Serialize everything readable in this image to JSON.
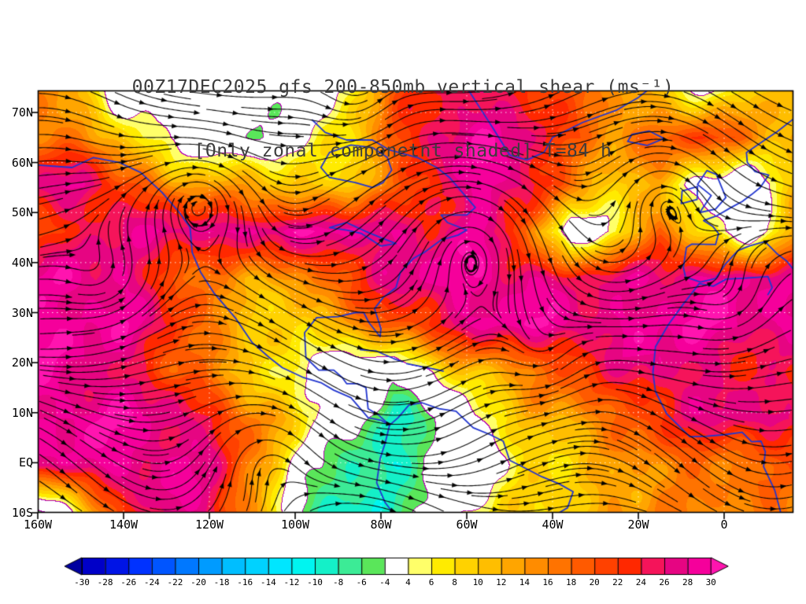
{
  "chart_data": {
    "type": "heatmap",
    "overlays": [
      "streamlines",
      "coastlines",
      "zero-contours"
    ],
    "title": "00Z17DEC2025 gfs 200-850mb vertical shear (ms⁻¹)",
    "subtitle": "[Only zonal componetnt shaded] T=84 h",
    "model": "gfs",
    "valid_time": "00Z17DEC2025",
    "level_range": "200-850mb",
    "forecast_hour": "T=84 h",
    "units": "ms⁻¹",
    "x_ticks": {
      "labels": [
        "160W",
        "140W",
        "120W",
        "100W",
        "80W",
        "60W",
        "40W",
        "20W",
        "0"
      ],
      "values": [
        -160,
        -140,
        -120,
        -100,
        -80,
        -60,
        -40,
        -20,
        0
      ]
    },
    "y_ticks": {
      "labels": [
        "70N",
        "60N",
        "50N",
        "40N",
        "30N",
        "20N",
        "10N",
        "EQ",
        "10S"
      ],
      "values": [
        70,
        60,
        50,
        40,
        30,
        20,
        10,
        0,
        -10
      ]
    },
    "geo": {
      "lon_min": -160,
      "lon_max": 16.1,
      "lat_min": -10,
      "lat_max": 74.4
    },
    "grid": {
      "ncols": 18,
      "nrows": 10,
      "description": "zonal shear (ms-1), rows from 74.4N (top) to 10S (bottom), cols from 160W to 16E",
      "values": [
        [
          16,
          10,
          0,
          -2,
          -4,
          0,
          -2,
          6,
          18,
          24,
          26,
          24,
          18,
          14,
          10,
          4,
          8,
          12
        ],
        [
          18,
          16,
          8,
          2,
          0,
          -4,
          2,
          8,
          20,
          28,
          29,
          26,
          20,
          16,
          18,
          22,
          16,
          12
        ],
        [
          26,
          28,
          22,
          14,
          12,
          12,
          10,
          10,
          16,
          24,
          29,
          28,
          16,
          8,
          12,
          2,
          -2,
          10
        ],
        [
          20,
          24,
          26,
          28,
          29,
          29,
          28,
          29,
          28,
          26,
          28,
          18,
          -2,
          6,
          18,
          6,
          -2,
          14
        ],
        [
          28,
          29,
          28,
          20,
          14,
          12,
          16,
          22,
          26,
          29,
          29,
          28,
          24,
          26,
          28,
          29,
          28,
          26
        ],
        [
          29,
          29,
          28,
          24,
          16,
          10,
          6,
          14,
          20,
          24,
          28,
          29,
          29,
          28,
          29,
          29,
          28,
          29
        ],
        [
          29,
          28,
          26,
          20,
          14,
          8,
          4,
          0,
          -4,
          6,
          12,
          16,
          20,
          24,
          28,
          26,
          24,
          22
        ],
        [
          28,
          29,
          29,
          28,
          24,
          16,
          6,
          -2,
          -8,
          -4,
          4,
          10,
          14,
          18,
          22,
          26,
          28,
          26
        ],
        [
          26,
          29,
          29,
          28,
          26,
          14,
          0,
          -8,
          -10,
          -4,
          2,
          8,
          8,
          12,
          16,
          18,
          16,
          18
        ],
        [
          -6,
          8,
          22,
          28,
          26,
          12,
          -6,
          -12,
          -6,
          0,
          6,
          8,
          10,
          14,
          16,
          14,
          16,
          18
        ]
      ]
    },
    "colorbar": {
      "boundaries": [
        -30,
        -28,
        -26,
        -24,
        -22,
        -20,
        -18,
        -16,
        -14,
        -12,
        -10,
        -8,
        -6,
        -4,
        4,
        6,
        8,
        10,
        12,
        14,
        16,
        18,
        20,
        22,
        24,
        26,
        28,
        30
      ],
      "labels": [
        "-30",
        "-28",
        "-26",
        "-24",
        "-22",
        "-20",
        "-18",
        "-16",
        "-14",
        "-12",
        "-10",
        "-8",
        "-6",
        "-4",
        "4",
        "6",
        "8",
        "10",
        "12",
        "14",
        "16",
        "18",
        "20",
        "22",
        "24",
        "26",
        "28",
        "30"
      ],
      "colors": [
        "#0000A0",
        "#0000C8",
        "#0014E6",
        "#0032FF",
        "#0055FF",
        "#0078FF",
        "#009BFF",
        "#00BEFF",
        "#00D2FF",
        "#00E6FF",
        "#00F5F0",
        "#14F0C8",
        "#3CEB96",
        "#5AE65A",
        "#FFFFFF",
        "#FFFF69",
        "#FFEB00",
        "#FFD200",
        "#FFBE00",
        "#FFA500",
        "#FF8C00",
        "#FF7300",
        "#FF5A00",
        "#FF4100",
        "#FF2800",
        "#F5145A",
        "#E60582",
        "#F5009B",
        "#FF14AF"
      ]
    },
    "streamlines": {
      "color": "#000000",
      "style": "evenly spaced curves with arrowheads",
      "flow": "predominantly westerly with embedded vortices"
    },
    "coastline_color": "#2236CF",
    "contour_color": "#B400B4",
    "coastlines": [
      [
        [
          -165,
          64
        ],
        [
          -160,
          59.5
        ],
        [
          -152,
          59
        ],
        [
          -147,
          61
        ],
        [
          -141,
          60
        ],
        [
          -136,
          58
        ],
        [
          -131,
          54
        ],
        [
          -127,
          50
        ],
        [
          -124.5,
          47
        ],
        [
          -124,
          42
        ],
        [
          -122,
          38
        ],
        [
          -119,
          34
        ],
        [
          -114,
          29
        ],
        [
          -110,
          24
        ],
        [
          -106,
          21
        ],
        [
          -103,
          19
        ],
        [
          -98,
          17
        ],
        [
          -94,
          16
        ],
        [
          -91,
          14.5
        ],
        [
          -87,
          13
        ],
        [
          -85,
          11
        ],
        [
          -83,
          9
        ],
        [
          -80,
          8.5
        ],
        [
          -78,
          7.5
        ]
      ],
      [
        [
          -78,
          7.5
        ],
        [
          -80.5,
          9.5
        ],
        [
          -83,
          10.8
        ],
        [
          -83.5,
          15
        ],
        [
          -85.5,
          15.8
        ],
        [
          -88,
          15.8
        ],
        [
          -89,
          17
        ],
        [
          -91,
          18.5
        ],
        [
          -94.5,
          18.5
        ],
        [
          -97.5,
          21
        ],
        [
          -97.8,
          26
        ],
        [
          -95,
          29
        ],
        [
          -90,
          29.2
        ],
        [
          -86,
          30
        ],
        [
          -84,
          30
        ],
        [
          -82.8,
          28
        ],
        [
          -80.2,
          25.2
        ],
        [
          -80,
          26.8
        ],
        [
          -81.5,
          30.8
        ],
        [
          -79.5,
          33
        ],
        [
          -76.5,
          35
        ],
        [
          -75.5,
          38
        ],
        [
          -72.5,
          40.8
        ],
        [
          -70,
          42
        ],
        [
          -66,
          44.5
        ],
        [
          -62,
          45.5
        ],
        [
          -60,
          46.5
        ],
        [
          -64.5,
          48
        ],
        [
          -66,
          49.5
        ],
        [
          -60,
          49.5
        ],
        [
          -58,
          51
        ],
        [
          -60.5,
          53.5
        ],
        [
          -64,
          57
        ],
        [
          -67,
          59
        ],
        [
          -71.5,
          61
        ],
        [
          -78,
          62.5
        ],
        [
          -82,
          64.5
        ],
        [
          -88,
          64.5
        ],
        [
          -93,
          66
        ],
        [
          -96,
          68.5
        ]
      ],
      [
        [
          -94,
          59
        ],
        [
          -92,
          57
        ],
        [
          -86,
          56
        ],
        [
          -82,
          55
        ],
        [
          -79.5,
          56
        ],
        [
          -77.5,
          58.5
        ],
        [
          -78.5,
          61
        ],
        [
          -82,
          63
        ],
        [
          -87,
          63.5
        ],
        [
          -92,
          62
        ],
        [
          -94,
          59
        ]
      ],
      [
        [
          -92,
          47
        ],
        [
          -88,
          46.5
        ],
        [
          -84.5,
          45.8
        ],
        [
          -80,
          43.3
        ],
        [
          -76.5,
          43.8
        ],
        [
          -79.5,
          44.8
        ],
        [
          -83.5,
          46.2
        ],
        [
          -88,
          48
        ],
        [
          -92,
          47
        ]
      ],
      [
        [
          -60,
          75
        ],
        [
          -57,
          71
        ],
        [
          -54,
          67
        ],
        [
          -50,
          61.5
        ],
        [
          -46,
          60.5
        ],
        [
          -42,
          62
        ],
        [
          -40,
          65
        ],
        [
          -33,
          68
        ],
        [
          -25,
          70.5
        ],
        [
          -20,
          73
        ],
        [
          -17,
          75
        ]
      ],
      [
        [
          -84.8,
          22.6
        ],
        [
          -81,
          22.3
        ],
        [
          -77,
          20.8
        ],
        [
          -75,
          20.2
        ]
      ],
      [
        [
          -74,
          19.8
        ],
        [
          -71,
          19.3
        ],
        [
          -68,
          18.8
        ],
        [
          -65.5,
          18.3
        ]
      ],
      [
        [
          -78,
          7.5
        ],
        [
          -76,
          9
        ],
        [
          -73.5,
          11.5
        ],
        [
          -70.5,
          12
        ],
        [
          -66.5,
          10.8
        ],
        [
          -62.5,
          10.3
        ],
        [
          -58.5,
          7
        ],
        [
          -54.5,
          5.6
        ],
        [
          -51.5,
          4.3
        ],
        [
          -50,
          0.5
        ],
        [
          -47,
          -0.8
        ],
        [
          -42.5,
          -2.8
        ],
        [
          -38.5,
          -4.2
        ],
        [
          -35.2,
          -5.8
        ],
        [
          -36.5,
          -9
        ],
        [
          -38.5,
          -10
        ]
      ],
      [
        [
          -78,
          7.5
        ],
        [
          -79,
          4
        ],
        [
          -80.2,
          0.8
        ],
        [
          -81,
          -4
        ],
        [
          -79,
          -8
        ],
        [
          -77.2,
          -10
        ]
      ],
      [
        [
          -5.7,
          50
        ],
        [
          -3,
          53.4
        ],
        [
          -6.2,
          55.6
        ],
        [
          -4,
          58.4
        ],
        [
          -1.8,
          57.6
        ],
        [
          0.4,
          53
        ],
        [
          -2,
          50.7
        ],
        [
          -5.7,
          50
        ]
      ],
      [
        [
          -10,
          51.8
        ],
        [
          -9.8,
          54.3
        ],
        [
          -6.2,
          55.2
        ],
        [
          -6.3,
          52.6
        ],
        [
          -10,
          51.8
        ]
      ],
      [
        [
          9.5,
          44.2
        ],
        [
          5.8,
          43.3
        ],
        [
          3.2,
          42.4
        ],
        [
          0.2,
          39.6
        ],
        [
          -2,
          36.8
        ],
        [
          -5.5,
          36.1
        ],
        [
          -9,
          37.1
        ],
        [
          -9.5,
          39
        ],
        [
          -8.8,
          43
        ],
        [
          -7.5,
          43.7
        ],
        [
          -2,
          43.6
        ],
        [
          -1.3,
          45.8
        ],
        [
          -2.6,
          47.2
        ],
        [
          -4.8,
          48.4
        ],
        [
          -1.6,
          49.4
        ],
        [
          1.6,
          51
        ],
        [
          4.2,
          52.2
        ],
        [
          6.4,
          53.6
        ],
        [
          8.4,
          55
        ]
      ],
      [
        [
          8.4,
          55
        ],
        [
          10.4,
          57.5
        ],
        [
          7.2,
          58.2
        ],
        [
          5.4,
          60
        ],
        [
          5.2,
          62
        ],
        [
          8.6,
          64
        ],
        [
          12.4,
          66.2
        ],
        [
          16,
          68.6
        ]
      ],
      [
        [
          9.5,
          44.2
        ],
        [
          12.3,
          41.8
        ],
        [
          14.6,
          40.3
        ],
        [
          16,
          38.8
        ]
      ],
      [
        [
          -22.5,
          64.2
        ],
        [
          -18,
          63.4
        ],
        [
          -14,
          64.8
        ],
        [
          -17.5,
          66.3
        ],
        [
          -21.5,
          65.6
        ],
        [
          -22.5,
          64.2
        ]
      ],
      [
        [
          -5.8,
          35.8
        ],
        [
          -2.5,
          35.3
        ],
        [
          0.5,
          36.7
        ],
        [
          5.2,
          36.9
        ],
        [
          10.2,
          37.2
        ],
        [
          11.2,
          35
        ],
        [
          10.2,
          33.6
        ]
      ],
      [
        [
          -5.8,
          35.8
        ],
        [
          -9.6,
          31.6
        ],
        [
          -13,
          27.6
        ],
        [
          -16,
          23.2
        ],
        [
          -16.6,
          18
        ],
        [
          -16,
          14.2
        ],
        [
          -13.4,
          9.8
        ],
        [
          -8,
          5.2
        ],
        [
          -4,
          5.3
        ],
        [
          0,
          5.6
        ],
        [
          4.2,
          6.1
        ],
        [
          6.4,
          4.2
        ],
        [
          8.6,
          4.3
        ],
        [
          9.6,
          2.2
        ],
        [
          9.2,
          -0.8
        ],
        [
          11.8,
          -5.5
        ],
        [
          13.2,
          -10
        ]
      ]
    ]
  }
}
